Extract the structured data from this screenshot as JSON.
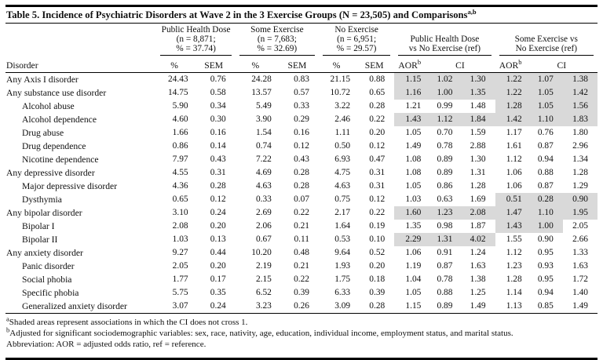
{
  "title": {
    "text": "Table 5. Incidence of Psychiatric Disorders at Wave 2 in the 3 Exercise Groups (N = 23,505) and Comparisons",
    "sup": "a,b"
  },
  "headers": {
    "disorder": "Disorder",
    "pct": "%",
    "sem": "SEM",
    "aor": "AOR",
    "aor_sup": "b",
    "ci": "CI"
  },
  "groups": [
    {
      "line1": "Public Health Dose",
      "line2": "(n = 8,871;",
      "line3": "% = 37.74)"
    },
    {
      "line1": "Some Exercise",
      "line2": "(n = 7,683;",
      "line3": "% = 32.69)"
    },
    {
      "line1": "No Exercise",
      "line2": "(n = 6,951;",
      "line3": "% = 29.57)"
    },
    {
      "line1": "Public Health Dose",
      "line2": "vs No Exercise (ref)"
    },
    {
      "line1": "Some Exercise vs",
      "line2": "No Exercise (ref)"
    }
  ],
  "shade_color": "#d9d9d9",
  "text_color": "#101010",
  "rows": [
    {
      "label": "Any Axis I disorder",
      "indent": false,
      "values": [
        "24.43",
        "0.76",
        "24.28",
        "0.83",
        "21.15",
        "0.88",
        "1.15",
        "1.02",
        "1.30",
        "1.22",
        "1.07",
        "1.38"
      ],
      "shaded": [
        0,
        0,
        0,
        0,
        0,
        0,
        1,
        1,
        1,
        1,
        1,
        1
      ]
    },
    {
      "label": "Any substance use disorder",
      "indent": false,
      "values": [
        "14.75",
        "0.58",
        "13.57",
        "0.57",
        "10.72",
        "0.65",
        "1.16",
        "1.00",
        "1.35",
        "1.22",
        "1.05",
        "1.42"
      ],
      "shaded": [
        0,
        0,
        0,
        0,
        0,
        0,
        1,
        1,
        1,
        1,
        1,
        1
      ]
    },
    {
      "label": "Alcohol abuse",
      "indent": true,
      "values": [
        "5.90",
        "0.34",
        "5.49",
        "0.33",
        "3.22",
        "0.28",
        "1.21",
        "0.99",
        "1.48",
        "1.28",
        "1.05",
        "1.56"
      ],
      "shaded": [
        0,
        0,
        0,
        0,
        0,
        0,
        0,
        0,
        0,
        1,
        1,
        1
      ]
    },
    {
      "label": "Alcohol dependence",
      "indent": true,
      "values": [
        "4.60",
        "0.30",
        "3.90",
        "0.29",
        "2.46",
        "0.22",
        "1.43",
        "1.12",
        "1.84",
        "1.42",
        "1.10",
        "1.83"
      ],
      "shaded": [
        0,
        0,
        0,
        0,
        0,
        0,
        1,
        1,
        1,
        1,
        1,
        1
      ]
    },
    {
      "label": "Drug abuse",
      "indent": true,
      "values": [
        "1.66",
        "0.16",
        "1.54",
        "0.16",
        "1.11",
        "0.20",
        "1.05",
        "0.70",
        "1.59",
        "1.17",
        "0.76",
        "1.80"
      ],
      "shaded": [
        0,
        0,
        0,
        0,
        0,
        0,
        0,
        0,
        0,
        0,
        0,
        0
      ]
    },
    {
      "label": "Drug dependence",
      "indent": true,
      "values": [
        "0.86",
        "0.14",
        "0.74",
        "0.12",
        "0.50",
        "0.12",
        "1.49",
        "0.78",
        "2.88",
        "1.61",
        "0.87",
        "2.96"
      ],
      "shaded": [
        0,
        0,
        0,
        0,
        0,
        0,
        0,
        0,
        0,
        0,
        0,
        0
      ]
    },
    {
      "label": "Nicotine dependence",
      "indent": true,
      "values": [
        "7.97",
        "0.43",
        "7.22",
        "0.43",
        "6.93",
        "0.47",
        "1.08",
        "0.89",
        "1.30",
        "1.12",
        "0.94",
        "1.34"
      ],
      "shaded": [
        0,
        0,
        0,
        0,
        0,
        0,
        0,
        0,
        0,
        0,
        0,
        0
      ]
    },
    {
      "label": "Any depressive disorder",
      "indent": false,
      "values": [
        "4.55",
        "0.31",
        "4.69",
        "0.28",
        "4.75",
        "0.31",
        "1.08",
        "0.89",
        "1.31",
        "1.06",
        "0.88",
        "1.28"
      ],
      "shaded": [
        0,
        0,
        0,
        0,
        0,
        0,
        0,
        0,
        0,
        0,
        0,
        0
      ]
    },
    {
      "label": "Major depressive disorder",
      "indent": true,
      "values": [
        "4.36",
        "0.28",
        "4.63",
        "0.28",
        "4.63",
        "0.31",
        "1.05",
        "0.86",
        "1.28",
        "1.06",
        "0.87",
        "1.29"
      ],
      "shaded": [
        0,
        0,
        0,
        0,
        0,
        0,
        0,
        0,
        0,
        0,
        0,
        0
      ]
    },
    {
      "label": "Dysthymia",
      "indent": true,
      "values": [
        "0.65",
        "0.12",
        "0.33",
        "0.07",
        "0.75",
        "0.12",
        "1.03",
        "0.63",
        "1.69",
        "0.51",
        "0.28",
        "0.90"
      ],
      "shaded": [
        0,
        0,
        0,
        0,
        0,
        0,
        0,
        0,
        0,
        1,
        1,
        1
      ]
    },
    {
      "label": "Any bipolar disorder",
      "indent": false,
      "values": [
        "3.10",
        "0.24",
        "2.69",
        "0.22",
        "2.17",
        "0.22",
        "1.60",
        "1.23",
        "2.08",
        "1.47",
        "1.10",
        "1.95"
      ],
      "shaded": [
        0,
        0,
        0,
        0,
        0,
        0,
        1,
        1,
        1,
        1,
        1,
        1
      ]
    },
    {
      "label": "Bipolar I",
      "indent": true,
      "values": [
        "2.08",
        "0.20",
        "2.06",
        "0.21",
        "1.64",
        "0.19",
        "1.35",
        "0.98",
        "1.87",
        "1.43",
        "1.00",
        "2.05"
      ],
      "shaded": [
        0,
        0,
        0,
        0,
        0,
        0,
        0,
        0,
        0,
        1,
        1,
        0
      ]
    },
    {
      "label": "Bipolar II",
      "indent": true,
      "values": [
        "1.03",
        "0.13",
        "0.67",
        "0.11",
        "0.53",
        "0.10",
        "2.29",
        "1.31",
        "4.02",
        "1.55",
        "0.90",
        "2.66"
      ],
      "shaded": [
        0,
        0,
        0,
        0,
        0,
        0,
        1,
        1,
        1,
        0,
        0,
        0
      ]
    },
    {
      "label": "Any anxiety disorder",
      "indent": false,
      "values": [
        "9.27",
        "0.44",
        "10.20",
        "0.48",
        "9.64",
        "0.52",
        "1.06",
        "0.91",
        "1.24",
        "1.12",
        "0.95",
        "1.33"
      ],
      "shaded": [
        0,
        0,
        0,
        0,
        0,
        0,
        0,
        0,
        0,
        0,
        0,
        0
      ]
    },
    {
      "label": "Panic disorder",
      "indent": true,
      "values": [
        "2.05",
        "0.20",
        "2.19",
        "0.21",
        "1.93",
        "0.20",
        "1.19",
        "0.87",
        "1.63",
        "1.23",
        "0.93",
        "1.63"
      ],
      "shaded": [
        0,
        0,
        0,
        0,
        0,
        0,
        0,
        0,
        0,
        0,
        0,
        0
      ]
    },
    {
      "label": "Social phobia",
      "indent": true,
      "values": [
        "1.77",
        "0.17",
        "2.15",
        "0.22",
        "1.75",
        "0.18",
        "1.04",
        "0.78",
        "1.38",
        "1.28",
        "0.95",
        "1.72"
      ],
      "shaded": [
        0,
        0,
        0,
        0,
        0,
        0,
        0,
        0,
        0,
        0,
        0,
        0
      ]
    },
    {
      "label": "Specific phobia",
      "indent": true,
      "values": [
        "5.75",
        "0.35",
        "6.52",
        "0.39",
        "6.33",
        "0.39",
        "1.05",
        "0.88",
        "1.25",
        "1.14",
        "0.94",
        "1.40"
      ],
      "shaded": [
        0,
        0,
        0,
        0,
        0,
        0,
        0,
        0,
        0,
        0,
        0,
        0
      ]
    },
    {
      "label": "Generalized anxiety disorder",
      "indent": true,
      "values": [
        "3.07",
        "0.24",
        "3.23",
        "0.26",
        "3.09",
        "0.28",
        "1.15",
        "0.89",
        "1.49",
        "1.13",
        "0.85",
        "1.49"
      ],
      "shaded": [
        0,
        0,
        0,
        0,
        0,
        0,
        0,
        0,
        0,
        0,
        0,
        0
      ]
    }
  ],
  "footnotes": {
    "a": {
      "sup": "a",
      "text": "Shaded areas represent associations in which the CI does not cross 1."
    },
    "b": {
      "sup": "b",
      "text": "Adjusted for significant sociodemographic variables: sex, race, nativity, age, education, individual income, employment status, and marital status."
    },
    "abbrev": {
      "text": "Abbreviation: AOR = adjusted odds ratio, ref = reference."
    }
  }
}
